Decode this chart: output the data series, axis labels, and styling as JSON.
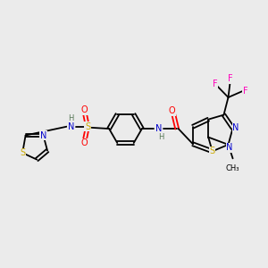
{
  "background_color": "#ebebeb",
  "fig_width": 3.0,
  "fig_height": 3.0,
  "dpi": 100,
  "atom_colors": {
    "C": "#000000",
    "N": "#0000cc",
    "S": "#ccaa00",
    "O": "#ff0000",
    "F": "#ff00bb",
    "H": "#557755"
  }
}
